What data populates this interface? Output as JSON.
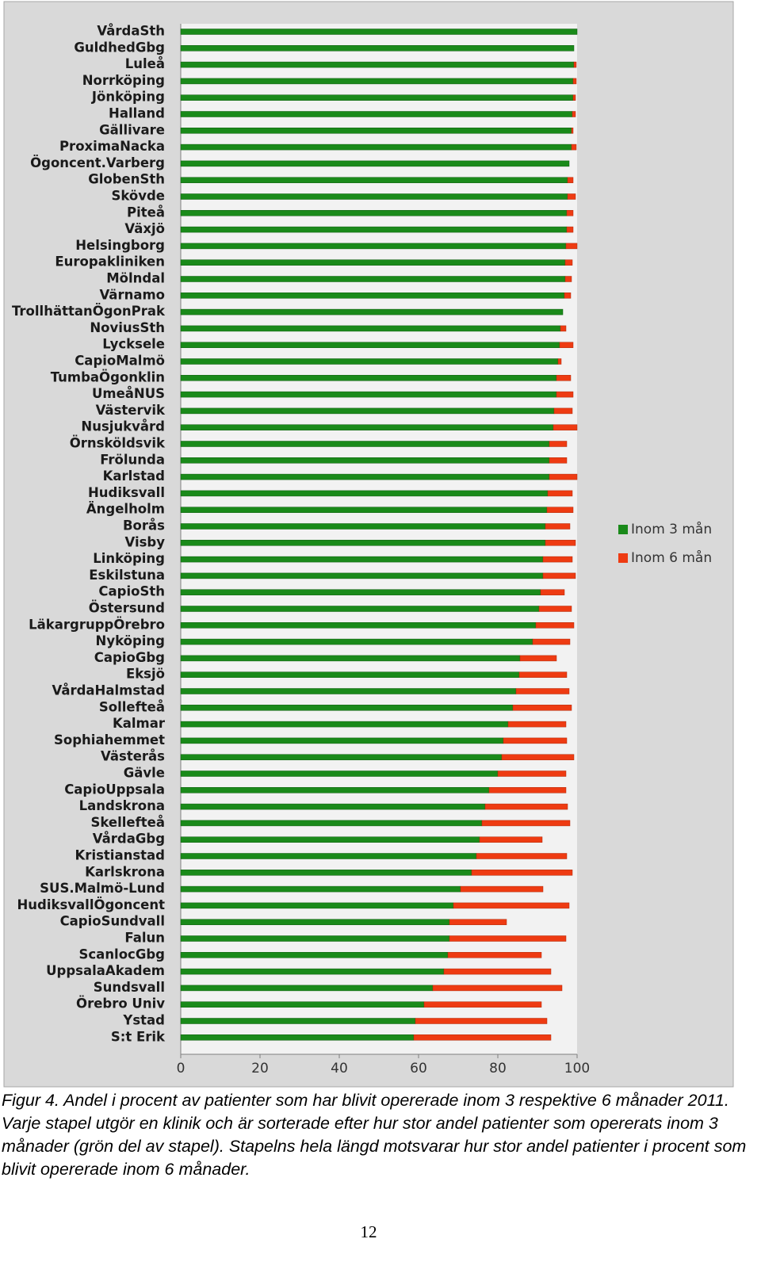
{
  "chart_data": {
    "type": "stacked-barh",
    "categories": [
      "VårdaSth",
      "GuldhedGbg",
      "Luleå",
      "Norrköping",
      "Jönköping",
      "Halland",
      "Gällivare",
      "ProximaNacka",
      "Ögoncent.Varberg",
      "GlobenSth",
      "Skövde",
      "Piteå",
      "Växjö",
      "Helsingborg",
      "Europakliniken",
      "Mölndal",
      "Värnamo",
      "TrollhättanÖgonPrak",
      "NoviusSth",
      "Lycksele",
      "CapioMalmö",
      "TumbaÖgonklin",
      "UmeåNUS",
      "Västervik",
      "Nusjukvård",
      "Örnsköldsvik",
      "Frölunda",
      "Karlstad",
      "Hudiksvall",
      "Ängelholm",
      "Borås",
      "Visby",
      "Linköping",
      "Eskilstuna",
      "CapioSth",
      "Östersund",
      "LäkargruppÖrebro",
      "Nyköping",
      "CapioGbg",
      "Eksjö",
      "VårdaHalmstad",
      "Sollefteå",
      "Kalmar",
      "Sophiahemmet",
      "Västerås",
      "Gävle",
      "CapioUppsala",
      "Landskrona",
      "Skellefteå",
      "VårdaGbg",
      "Kristianstad",
      "Karlskrona",
      "SUS.Malmö-Lund",
      "HudiksvallÖgoncent",
      "CapioSundvall",
      "Falun",
      "ScanlocGbg",
      "UppsalaAkadem",
      "Sundsvall",
      "Örebro Univ",
      "Ystad",
      "S:t Erik"
    ],
    "series": [
      {
        "name": "Inom 3 mån",
        "color": "#1a8a1a",
        "values": [
          100,
          99.2,
          99.2,
          99,
          99,
          98.8,
          98.6,
          98.6,
          98,
          97.6,
          97.6,
          97.4,
          97.4,
          97.2,
          97,
          97,
          96.8,
          96.4,
          95.8,
          95.6,
          95.2,
          94.8,
          94.8,
          94.2,
          94,
          93,
          93,
          93,
          92.6,
          92.4,
          92,
          92,
          91.4,
          91.4,
          90.8,
          90.4,
          89.6,
          88.8,
          85.6,
          85.4,
          84.6,
          83.8,
          82.6,
          81.4,
          81,
          80,
          77.8,
          76.8,
          76,
          75.4,
          74.6,
          73.4,
          70.6,
          68.8,
          67.8,
          67.8,
          67.4,
          66.4,
          63.6,
          61.4,
          59.2,
          58.8
        ]
      },
      {
        "name": "Inom 6 mån",
        "color": "#ee3b12",
        "values": [
          0,
          0,
          0.6,
          0.8,
          0.6,
          0.8,
          0.4,
          1.2,
          0,
          1.4,
          2,
          1.6,
          1.6,
          2.8,
          1.8,
          1.6,
          1.6,
          0,
          1.4,
          3.4,
          0.8,
          3.6,
          4.2,
          4.6,
          6,
          4.4,
          4.4,
          7,
          6.2,
          6.6,
          6.2,
          7.6,
          7.4,
          8.2,
          6,
          8.2,
          9.6,
          9.4,
          9.2,
          12,
          13.4,
          14.8,
          14.6,
          16,
          18.2,
          17.2,
          19.4,
          20.8,
          22.2,
          15.8,
          22.8,
          25.4,
          20.8,
          29.2,
          14.4,
          29.4,
          23.6,
          27,
          32.6,
          29.6,
          33.2,
          34.6
        ]
      }
    ],
    "xlim": [
      0,
      100
    ],
    "xticks": [
      0,
      20,
      40,
      60,
      80,
      100
    ]
  },
  "caption": "Figur 4. Andel i procent av patienter som har blivit opererade inom 3 respektive 6 månader 2011. Varje stapel utgör en klinik och är sorterade efter hur stor andel patienter som opererats inom 3 månader (grön del av stapel). Stapelns hela längd motsvarar hur stor andel patienter i procent som blivit opererade inom 6 månader.",
  "page_number": "12"
}
